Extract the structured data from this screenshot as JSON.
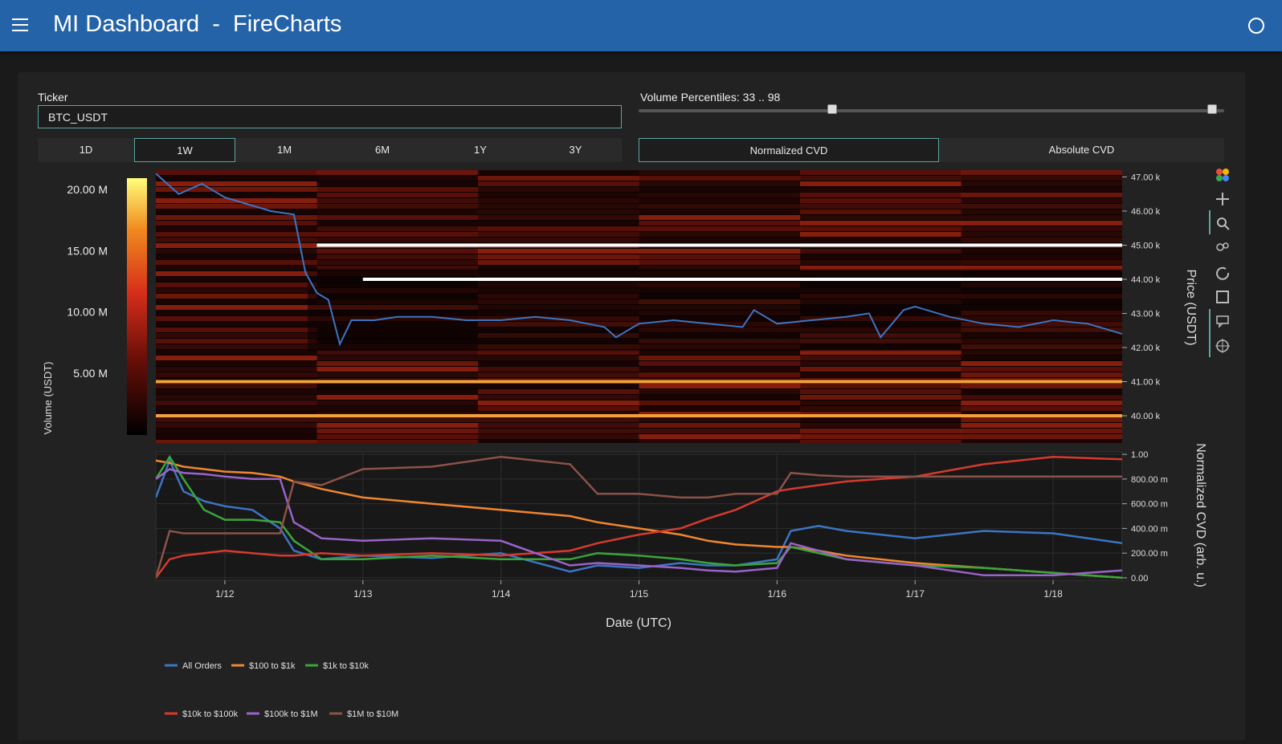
{
  "app": {
    "title": "MI Dashboard  -  FireCharts"
  },
  "controls": {
    "ticker_label": "Ticker",
    "ticker_value": "BTC_USDT",
    "volume_percentiles_label": "Volume Percentiles: 33 .. 98",
    "volume_percentiles": {
      "low": 33,
      "high": 98
    },
    "timeframes": [
      {
        "label": "1D",
        "active": false
      },
      {
        "label": "1W",
        "active": true
      },
      {
        "label": "1M",
        "active": false
      },
      {
        "label": "6M",
        "active": false
      },
      {
        "label": "1Y",
        "active": false
      },
      {
        "label": "3Y",
        "active": false
      }
    ],
    "cvd_modes": [
      {
        "label": "Normalized CVD",
        "active": true
      },
      {
        "label": "Absolute CVD",
        "active": false
      }
    ]
  },
  "toolbar": {
    "icons": [
      "plotly-logo-icon",
      "pan-icon",
      "zoom-icon",
      "zoom-spike-icon",
      "reset-axes-icon",
      "save-icon",
      "hover-compare-icon",
      "crosshair-icon"
    ]
  },
  "colors": {
    "all_orders": "#3b75c4",
    "usd_100_1k": "#f0862e",
    "usd_1k_10k": "#3aa53a",
    "usd_10k_100k": "#d63a2f",
    "usd_100k_1m": "#9a63c9",
    "usd_1m_10m": "#8c5248",
    "accent": "#2563a8"
  },
  "chart_data": [
    {
      "type": "heatmap",
      "title": "",
      "xlabel": "",
      "ylabel": "Price (USDT)",
      "colorbar_label": "Volume (USDT)",
      "colorbar_ticks": [
        "5.00 M",
        "10.00 M",
        "15.00 M",
        "20.00 M"
      ],
      "colorbar_range": [
        0,
        21000000
      ],
      "y_ticks": [
        "40.00 k",
        "41.00 k",
        "42.00 k",
        "43.00 k",
        "44.00 k",
        "45.00 k",
        "46.00 k",
        "47.00 k"
      ],
      "ylim": [
        39200,
        47200
      ],
      "xlim": [
        "2024-01-11T12:00",
        "2024-01-18T12:00"
      ],
      "price_series": {
        "name": "Price",
        "x": [
          "1/11 12:00",
          "1/11 16:00",
          "1/11 20:00",
          "1/12 00:00",
          "1/12 04:00",
          "1/12 08:00",
          "1/12 12:00",
          "1/12 14:00",
          "1/12 16:00",
          "1/12 18:00",
          "1/12 20:00",
          "1/12 22:00",
          "1/13 00:00",
          "1/13 02:00",
          "1/13 06:00",
          "1/13 12:00",
          "1/13 18:00",
          "1/14 00:00",
          "1/14 06:00",
          "1/14 12:00",
          "1/14 18:00",
          "1/14 20:00",
          "1/15 00:00",
          "1/15 06:00",
          "1/15 12:00",
          "1/15 18:00",
          "1/15 20:00",
          "1/16 00:00",
          "1/16 06:00",
          "1/16 12:00",
          "1/16 16:00",
          "1/16 18:00",
          "1/16 22:00",
          "1/17 00:00",
          "1/17 06:00",
          "1/17 12:00",
          "1/17 18:00",
          "1/18 00:00",
          "1/18 06:00",
          "1/18 12:00"
        ],
        "y": [
          47100,
          46500,
          46800,
          46400,
          46200,
          46000,
          45900,
          44200,
          43600,
          43400,
          42100,
          42800,
          42800,
          42800,
          42900,
          42900,
          42800,
          42800,
          42900,
          42800,
          42600,
          42300,
          42700,
          42800,
          42700,
          42600,
          43100,
          42700,
          42800,
          42900,
          43000,
          42300,
          43100,
          43200,
          42900,
          42700,
          42600,
          42800,
          42700,
          42400
        ]
      },
      "highlighted_levels": [
        {
          "price": 45000,
          "x_start": "1/12 16:00",
          "x_end": "1/18 12:00"
        },
        {
          "price": 44000,
          "x_start": "1/13 00:00",
          "x_end": "1/18 12:00"
        },
        {
          "price": 41000,
          "x_start": "1/11 12:00",
          "x_end": "1/18 12:00"
        },
        {
          "price": 40000,
          "x_start": "1/11 12:00",
          "x_end": "1/18 12:00"
        }
      ]
    },
    {
      "type": "line",
      "title": "",
      "xlabel": "Date (UTC)",
      "ylabel": "Normalized CVD (arb. u.)",
      "x_ticks": [
        "1/12",
        "1/13",
        "1/14",
        "1/15",
        "1/16",
        "1/17",
        "1/18"
      ],
      "y_ticks": [
        "0.00",
        "200.00 m",
        "400.00 m",
        "600.00 m",
        "800.00 m",
        "1.00"
      ],
      "ylim": [
        -0.02,
        1.02
      ],
      "x": [
        0,
        0.1,
        0.2,
        0.35,
        0.5,
        0.7,
        0.9,
        1.0,
        1.2,
        1.5,
        2.0,
        2.5,
        3.0,
        3.2,
        3.5,
        3.8,
        4.0,
        4.2,
        4.5,
        4.6,
        4.8,
        5.0,
        5.5,
        6.0,
        6.5,
        7.0
      ],
      "legend_position": "bottom-left",
      "series": [
        {
          "name": "All Orders",
          "color_key": "all_orders",
          "values": [
            0.65,
            0.95,
            0.7,
            0.62,
            0.58,
            0.55,
            0.4,
            0.22,
            0.15,
            0.18,
            0.16,
            0.2,
            0.05,
            0.1,
            0.08,
            0.12,
            0.1,
            0.1,
            0.15,
            0.38,
            0.42,
            0.38,
            0.32,
            0.38,
            0.36,
            0.28
          ]
        },
        {
          "name": "$100 to $1k",
          "color_key": "usd_100_1k",
          "values": [
            0.95,
            0.93,
            0.9,
            0.88,
            0.86,
            0.85,
            0.82,
            0.78,
            0.72,
            0.65,
            0.6,
            0.55,
            0.5,
            0.45,
            0.4,
            0.35,
            0.3,
            0.27,
            0.25,
            0.25,
            0.22,
            0.18,
            0.12,
            0.08,
            0.04,
            0.0
          ]
        },
        {
          "name": "$1k to $10k",
          "color_key": "usd_1k_10k",
          "values": [
            0.8,
            0.98,
            0.8,
            0.55,
            0.47,
            0.47,
            0.45,
            0.3,
            0.15,
            0.15,
            0.18,
            0.15,
            0.15,
            0.2,
            0.18,
            0.15,
            0.12,
            0.1,
            0.12,
            0.25,
            0.2,
            0.15,
            0.1,
            0.08,
            0.04,
            0.0
          ]
        },
        {
          "name": "$10k to $100k",
          "color_key": "usd_10k_100k",
          "values": [
            0.0,
            0.15,
            0.18,
            0.2,
            0.22,
            0.2,
            0.18,
            0.18,
            0.2,
            0.18,
            0.2,
            0.18,
            0.22,
            0.28,
            0.35,
            0.4,
            0.48,
            0.55,
            0.7,
            0.72,
            0.75,
            0.78,
            0.82,
            0.92,
            0.98,
            0.96
          ]
        },
        {
          "name": "$100k to $1M",
          "color_key": "usd_100k_1m",
          "values": [
            0.8,
            0.88,
            0.85,
            0.84,
            0.82,
            0.8,
            0.8,
            0.45,
            0.32,
            0.3,
            0.32,
            0.3,
            0.1,
            0.12,
            0.1,
            0.08,
            0.06,
            0.05,
            0.08,
            0.28,
            0.22,
            0.15,
            0.1,
            0.02,
            0.02,
            0.06
          ]
        },
        {
          "name": "$1M to $10M",
          "color_key": "usd_1m_10m",
          "values": [
            0.0,
            0.38,
            0.36,
            0.36,
            0.36,
            0.36,
            0.36,
            0.78,
            0.75,
            0.88,
            0.9,
            0.98,
            0.92,
            0.68,
            0.68,
            0.65,
            0.65,
            0.68,
            0.68,
            0.85,
            0.83,
            0.82,
            0.82,
            0.82,
            0.82,
            0.82
          ]
        }
      ]
    }
  ]
}
